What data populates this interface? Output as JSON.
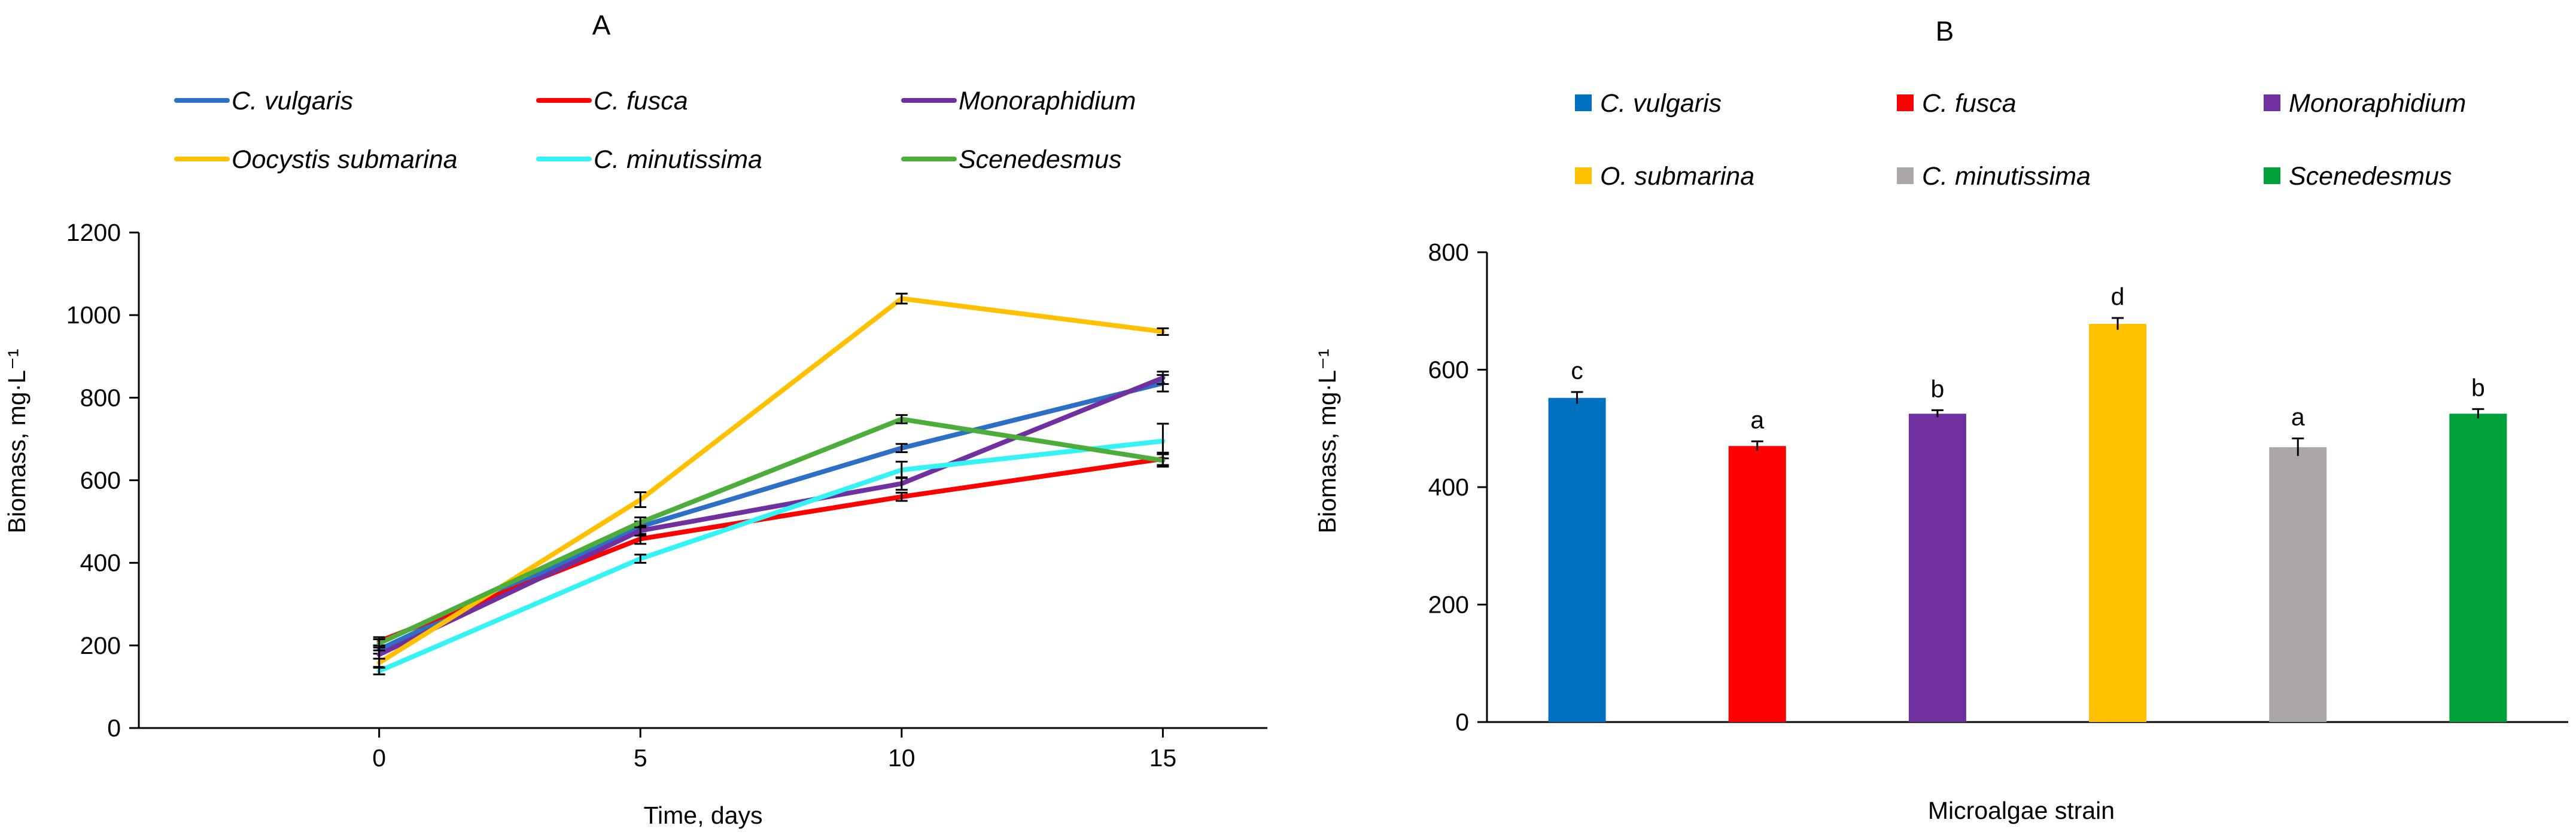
{
  "figure": {
    "panel_a_title": "A",
    "panel_b_title": "B"
  },
  "chart_data": [
    {
      "type": "line",
      "title": "A",
      "xlabel": "Time, days",
      "ylabel": "Biomass, mg·L⁻¹",
      "x": [
        0,
        5,
        10,
        15
      ],
      "xticks": [
        "0",
        "5",
        "10",
        "15"
      ],
      "xlim": [
        -4.6,
        17
      ],
      "ylim": [
        0,
        1200
      ],
      "yticks": [
        0,
        200,
        400,
        600,
        800,
        1000,
        1200
      ],
      "legend_position": "top",
      "series": [
        {
          "name": "C. vulgaris",
          "color": "#2E6FC6",
          "values": [
            190,
            488,
            678,
            835
          ],
          "errors": [
            10,
            12,
            10,
            20
          ]
        },
        {
          "name": "C. fusca",
          "color": "#FF0000",
          "values": [
            210,
            458,
            560,
            652
          ],
          "errors": [
            10,
            12,
            10,
            15
          ]
        },
        {
          "name": "Monoraphidium",
          "color": "#7030A0",
          "values": [
            178,
            478,
            592,
            848
          ],
          "errors": [
            10,
            12,
            15,
            15
          ]
        },
        {
          "name": "Oocystis submarina",
          "color": "#FFC000",
          "values": [
            158,
            553,
            1040,
            960
          ],
          "errors": [
            10,
            18,
            12,
            8
          ]
        },
        {
          "name": "C. minutissima",
          "color": "#33F3F5",
          "values": [
            138,
            410,
            625,
            695
          ],
          "errors": [
            8,
            10,
            20,
            42
          ]
        },
        {
          "name": "Scenedesmus",
          "color": "#4CAD3A",
          "values": [
            205,
            498,
            748,
            648
          ],
          "errors": [
            10,
            12,
            10,
            15
          ]
        }
      ]
    },
    {
      "type": "bar",
      "title": "B",
      "xlabel": "Microalgae strain",
      "ylabel": "Biomass, mg·L⁻¹",
      "ylim": [
        0,
        800
      ],
      "yticks": [
        0,
        200,
        400,
        600,
        800
      ],
      "legend_position": "top",
      "categories": [
        "C. vulgaris",
        "C. fusca",
        "Monoraphidium",
        "O. submarina",
        "C. minutissima",
        "Scenedesmus"
      ],
      "values": [
        552,
        470,
        525,
        678,
        468,
        525
      ],
      "errors": [
        10,
        8,
        6,
        10,
        15,
        8
      ],
      "significance": [
        "c",
        "a",
        "b",
        "d",
        "a",
        "b"
      ],
      "colors": [
        "#0070C0",
        "#FF0000",
        "#7030A0",
        "#FFC000",
        "#ABA7A7",
        "#00A13B"
      ]
    }
  ]
}
